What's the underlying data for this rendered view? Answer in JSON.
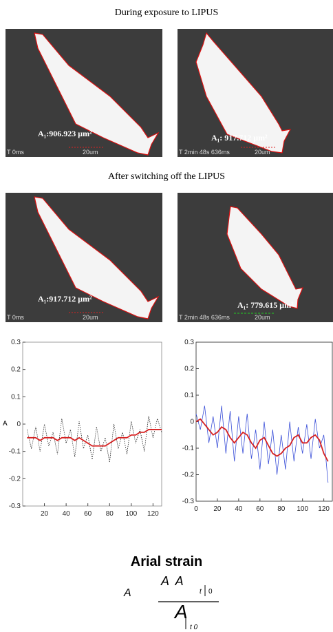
{
  "figure": {
    "heading_1": "During exposure to LIPUS",
    "heading_2": "After switching off the LIPUS",
    "panels": [
      {
        "area": "A₁:906.923 μm²",
        "time": "T 0ms",
        "scale": "20um"
      },
      {
        "area": "A₁: 917.712 μm²",
        "time": "T 2min 48s 636ms",
        "scale": "20um"
      },
      {
        "area": "A₁:917.712 μm²",
        "time": "T 0ms",
        "scale": "20um"
      },
      {
        "area": "A₁: 779.615 μm²",
        "time": "T 2min 48s 636ms",
        "scale": "20um"
      }
    ],
    "side_label": "A",
    "formula": {
      "title": "Arial strain",
      "lhs": "A",
      "numerator": "A  A",
      "sub_t": "t",
      "sub_0": "0",
      "denominator": "A",
      "den_sub": "t 0"
    }
  },
  "chart_data": [
    {
      "type": "line",
      "xlim": [
        0,
        128
      ],
      "ylim": [
        -0.3,
        0.3
      ],
      "xticks": [
        20,
        40,
        60,
        80,
        100,
        120
      ],
      "yticks": [
        -0.3,
        -0.2,
        -0.1,
        0,
        0.1,
        0.2,
        0.3
      ],
      "x": [
        4,
        8,
        12,
        16,
        20,
        24,
        28,
        32,
        36,
        40,
        44,
        48,
        52,
        56,
        60,
        64,
        68,
        72,
        76,
        80,
        84,
        88,
        92,
        96,
        100,
        104,
        108,
        112,
        116,
        120,
        124,
        128
      ],
      "series": [
        {
          "color": "#222222",
          "values": [
            -0.02,
            -0.09,
            -0.01,
            -0.1,
            0.0,
            -0.08,
            -0.03,
            -0.11,
            0.02,
            -0.07,
            -0.02,
            -0.12,
            0.01,
            -0.09,
            -0.04,
            -0.13,
            -0.01,
            -0.1,
            -0.05,
            -0.14,
            0.0,
            -0.09,
            -0.03,
            -0.11,
            0.01,
            -0.07,
            -0.02,
            -0.1,
            0.03,
            -0.05,
            0.02,
            -0.03
          ]
        },
        {
          "color": "#d62020",
          "values": [
            -0.05,
            -0.05,
            -0.05,
            -0.06,
            -0.05,
            -0.05,
            -0.05,
            -0.06,
            -0.05,
            -0.05,
            -0.05,
            -0.06,
            -0.05,
            -0.06,
            -0.07,
            -0.08,
            -0.08,
            -0.08,
            -0.08,
            -0.07,
            -0.06,
            -0.05,
            -0.05,
            -0.05,
            -0.04,
            -0.04,
            -0.03,
            -0.03,
            -0.02,
            -0.02,
            -0.02,
            -0.02
          ]
        }
      ]
    },
    {
      "type": "line",
      "xlim": [
        0,
        128
      ],
      "ylim": [
        -0.3,
        0.3
      ],
      "xticks": [
        0,
        20,
        40,
        60,
        80,
        100,
        120
      ],
      "yticks": [
        -0.3,
        -0.2,
        -0.1,
        0,
        0.1,
        0.2,
        0.3
      ],
      "x": [
        0,
        4,
        8,
        12,
        16,
        20,
        24,
        28,
        32,
        36,
        40,
        44,
        48,
        52,
        56,
        60,
        64,
        68,
        72,
        76,
        80,
        84,
        88,
        92,
        96,
        100,
        104,
        108,
        112,
        116,
        120,
        124
      ],
      "series": [
        {
          "color": "#3a4fd8",
          "values": [
            0.03,
            -0.03,
            0.06,
            -0.08,
            0.02,
            -0.1,
            0.06,
            -0.12,
            0.04,
            -0.15,
            0.02,
            -0.12,
            0.03,
            -0.14,
            -0.03,
            -0.18,
            0.0,
            -0.16,
            -0.03,
            -0.2,
            -0.05,
            -0.18,
            0.0,
            -0.15,
            -0.02,
            -0.12,
            -0.01,
            -0.14,
            0.01,
            -0.1,
            -0.05,
            -0.23
          ]
        },
        {
          "color": "#d62020",
          "values": [
            0,
            0.01,
            -0.01,
            -0.03,
            -0.05,
            -0.04,
            -0.02,
            -0.03,
            -0.06,
            -0.08,
            -0.06,
            -0.04,
            -0.05,
            -0.08,
            -0.1,
            -0.07,
            -0.06,
            -0.09,
            -0.12,
            -0.13,
            -0.12,
            -0.1,
            -0.09,
            -0.06,
            -0.05,
            -0.08,
            -0.08,
            -0.06,
            -0.05,
            -0.07,
            -0.12,
            -0.15
          ]
        }
      ]
    }
  ]
}
